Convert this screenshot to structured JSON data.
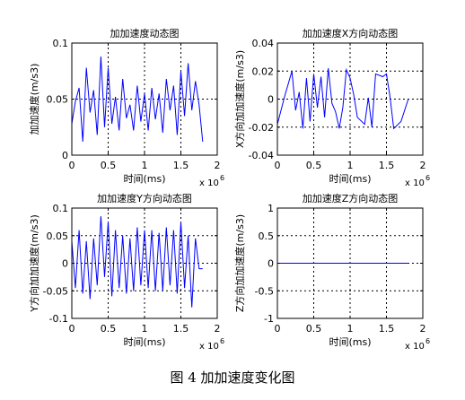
{
  "figure_caption": "图 4  加加速度变化图",
  "chart_data": [
    {
      "type": "line",
      "title": "加加速度动态图",
      "xlabel": "时间(ms)",
      "ylabel": "加加速度(m/s3)",
      "x_multiplier": "x 10",
      "x_multiplier_exp": "6",
      "xlim": [
        0,
        2
      ],
      "ylim": [
        0,
        0.1
      ],
      "xticks": [
        0,
        0.5,
        1,
        1.5,
        2
      ],
      "xtick_labels": [
        "0",
        "0.5",
        "1",
        "1.5",
        "2"
      ],
      "yticks": [
        0,
        0.05,
        0.1
      ],
      "ytick_labels": [
        "0",
        "0.05",
        "0.1"
      ],
      "grid": true,
      "line_color": "#0000ff",
      "series": [
        {
          "x": [
            0,
            0.05,
            0.1,
            0.15,
            0.2,
            0.25,
            0.3,
            0.35,
            0.4,
            0.45,
            0.5,
            0.55,
            0.6,
            0.65,
            0.7,
            0.75,
            0.8,
            0.85,
            0.9,
            0.95,
            1.0,
            1.05,
            1.1,
            1.15,
            1.2,
            1.25,
            1.3,
            1.35,
            1.4,
            1.45,
            1.5,
            1.55,
            1.6,
            1.65,
            1.7,
            1.75,
            1.8
          ],
          "y": [
            0.028,
            0.048,
            0.06,
            0.012,
            0.078,
            0.038,
            0.058,
            0.018,
            0.088,
            0.025,
            0.078,
            0.028,
            0.052,
            0.022,
            0.068,
            0.033,
            0.045,
            0.022,
            0.062,
            0.03,
            0.055,
            0.022,
            0.06,
            0.032,
            0.055,
            0.02,
            0.068,
            0.04,
            0.062,
            0.018,
            0.075,
            0.035,
            0.082,
            0.04,
            0.066,
            0.045,
            0.012
          ]
        }
      ]
    },
    {
      "type": "line",
      "title": "加加速度X方向动态图",
      "xlabel": "时间(ms)",
      "ylabel": "X方向加加速度(m/s3)",
      "x_multiplier": "x 10",
      "x_multiplier_exp": "6",
      "xlim": [
        0,
        2
      ],
      "ylim": [
        -0.04,
        0.04
      ],
      "xticks": [
        0,
        0.5,
        1,
        1.5,
        2
      ],
      "xtick_labels": [
        "0",
        "0.5",
        "1",
        "1.5",
        "2"
      ],
      "yticks": [
        -0.04,
        -0.02,
        0,
        0.02,
        0.04
      ],
      "ytick_labels": [
        "-0.04",
        "-0.02",
        "0",
        "0.02",
        "0.04"
      ],
      "grid": true,
      "line_color": "#0000ff",
      "series": [
        {
          "x": [
            0,
            0.1,
            0.2,
            0.25,
            0.3,
            0.35,
            0.4,
            0.45,
            0.5,
            0.55,
            0.6,
            0.65,
            0.7,
            0.75,
            0.8,
            0.85,
            0.9,
            0.95,
            1.0,
            1.05,
            1.1,
            1.2,
            1.25,
            1.3,
            1.35,
            1.45,
            1.5,
            1.55,
            1.6,
            1.7,
            1.8
          ],
          "y": [
            -0.018,
            0.002,
            0.02,
            -0.008,
            0.005,
            -0.021,
            0.015,
            -0.016,
            0.018,
            -0.006,
            0.016,
            -0.013,
            0.022,
            -0.003,
            -0.009,
            -0.021,
            -0.006,
            0.021,
            0.015,
            0.003,
            -0.013,
            -0.018,
            0.001,
            -0.02,
            0.018,
            0.016,
            0.018,
            0.001,
            -0.021,
            -0.016,
            0.0
          ]
        }
      ]
    },
    {
      "type": "line",
      "title": "加加速度Y方向动态图",
      "xlabel": "时间(ms)",
      "ylabel": "Y方向加加速度(m/s3)",
      "x_multiplier": "x 10",
      "x_multiplier_exp": "6",
      "xlim": [
        0,
        2
      ],
      "ylim": [
        -0.1,
        0.1
      ],
      "xticks": [
        0,
        0.5,
        1,
        1.5,
        2
      ],
      "xtick_labels": [
        "0",
        "0.5",
        "1",
        "1.5",
        "2"
      ],
      "yticks": [
        -0.1,
        -0.05,
        0,
        0.05,
        0.1
      ],
      "ytick_labels": [
        "-0.1",
        "-0.05",
        "0",
        "0.05",
        "0.1"
      ],
      "grid": true,
      "line_color": "#0000ff",
      "series": [
        {
          "x": [
            0,
            0.05,
            0.1,
            0.15,
            0.2,
            0.25,
            0.3,
            0.35,
            0.4,
            0.45,
            0.5,
            0.55,
            0.6,
            0.65,
            0.7,
            0.75,
            0.8,
            0.85,
            0.9,
            0.95,
            1.0,
            1.05,
            1.1,
            1.15,
            1.2,
            1.25,
            1.3,
            1.35,
            1.4,
            1.45,
            1.5,
            1.55,
            1.6,
            1.65,
            1.7,
            1.75,
            1.8
          ],
          "y": [
            0.04,
            -0.045,
            0.06,
            -0.055,
            0.04,
            -0.065,
            0.045,
            -0.04,
            0.085,
            -0.025,
            0.075,
            -0.06,
            0.06,
            -0.045,
            0.05,
            -0.055,
            0.045,
            -0.05,
            0.065,
            -0.04,
            0.06,
            -0.045,
            0.06,
            -0.05,
            0.055,
            -0.05,
            0.065,
            -0.04,
            0.06,
            -0.055,
            0.075,
            -0.045,
            0.05,
            -0.08,
            0.045,
            -0.01,
            -0.01
          ]
        }
      ]
    },
    {
      "type": "line",
      "title": "加加速度Z方向动态图",
      "xlabel": "时间(ms)",
      "ylabel": "Z方向加加速度(m/s3)",
      "x_multiplier": "x 10",
      "x_multiplier_exp": "6",
      "xlim": [
        0,
        2
      ],
      "ylim": [
        -1,
        1
      ],
      "xticks": [
        0,
        0.5,
        1,
        1.5,
        2
      ],
      "xtick_labels": [
        "0",
        "0.5",
        "1",
        "1.5",
        "2"
      ],
      "yticks": [
        -1,
        -0.5,
        0,
        0.5,
        1
      ],
      "ytick_labels": [
        "-1",
        "-0.5",
        "0",
        "0.5",
        "1"
      ],
      "grid": true,
      "line_color": "#0000ff",
      "series": [
        {
          "x": [
            0,
            1.8
          ],
          "y": [
            0,
            0
          ]
        }
      ]
    }
  ]
}
